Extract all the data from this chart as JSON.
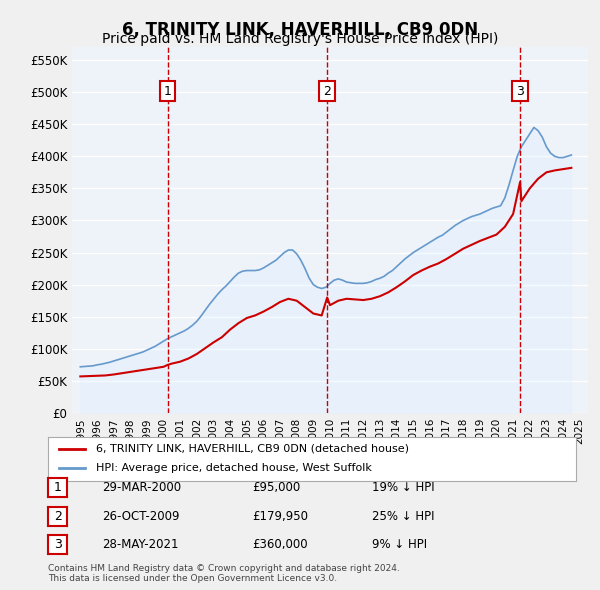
{
  "title": "6, TRINITY LINK, HAVERHILL, CB9 0DN",
  "subtitle": "Price paid vs. HM Land Registry's House Price Index (HPI)",
  "title_fontsize": 12,
  "subtitle_fontsize": 10,
  "ylim": [
    0,
    570000
  ],
  "yticks": [
    0,
    50000,
    100000,
    150000,
    200000,
    250000,
    300000,
    350000,
    400000,
    450000,
    500000,
    550000
  ],
  "ytick_labels": [
    "£0",
    "£50K",
    "£100K",
    "£150K",
    "£200K",
    "£250K",
    "£300K",
    "£350K",
    "£400K",
    "£450K",
    "£500K",
    "£550K"
  ],
  "xlim_start": 1994.5,
  "xlim_end": 2025.5,
  "background_color": "#EEF3FA",
  "plot_bg_color": "#EEF3FA",
  "grid_color": "#FFFFFF",
  "red_line_color": "#CC0000",
  "blue_line_color": "#6699CC",
  "blue_fill_color": "#DDEEFF",
  "marker_color": "#CC0000",
  "legend_label_red": "6, TRINITY LINK, HAVERHILL, CB9 0DN (detached house)",
  "legend_label_blue": "HPI: Average price, detached house, West Suffolk",
  "footnote": "Contains HM Land Registry data © Crown copyright and database right 2024.\nThis data is licensed under the Open Government Licence v3.0.",
  "transactions": [
    {
      "num": 1,
      "date": "29-MAR-2000",
      "price": 95000,
      "pct": "19% ↓ HPI",
      "x": 2000.25
    },
    {
      "num": 2,
      "date": "26-OCT-2009",
      "price": 179950,
      "pct": "25% ↓ HPI",
      "x": 2009.83
    },
    {
      "num": 3,
      "date": "28-MAY-2021",
      "price": 360000,
      "pct": "9% ↓ HPI",
      "x": 2021.42
    }
  ],
  "hpi_x": [
    1995,
    1995.25,
    1995.5,
    1995.75,
    1996,
    1996.25,
    1996.5,
    1996.75,
    1997,
    1997.25,
    1997.5,
    1997.75,
    1998,
    1998.25,
    1998.5,
    1998.75,
    1999,
    1999.25,
    1999.5,
    1999.75,
    2000,
    2000.25,
    2000.5,
    2000.75,
    2001,
    2001.25,
    2001.5,
    2001.75,
    2002,
    2002.25,
    2002.5,
    2002.75,
    2003,
    2003.25,
    2003.5,
    2003.75,
    2004,
    2004.25,
    2004.5,
    2004.75,
    2005,
    2005.25,
    2005.5,
    2005.75,
    2006,
    2006.25,
    2006.5,
    2006.75,
    2007,
    2007.25,
    2007.5,
    2007.75,
    2008,
    2008.25,
    2008.5,
    2008.75,
    2009,
    2009.25,
    2009.5,
    2009.75,
    2010,
    2010.25,
    2010.5,
    2010.75,
    2011,
    2011.25,
    2011.5,
    2011.75,
    2012,
    2012.25,
    2012.5,
    2012.75,
    2013,
    2013.25,
    2013.5,
    2013.75,
    2014,
    2014.25,
    2014.5,
    2014.75,
    2015,
    2015.25,
    2015.5,
    2015.75,
    2016,
    2016.25,
    2016.5,
    2016.75,
    2017,
    2017.25,
    2017.5,
    2017.75,
    2018,
    2018.25,
    2018.5,
    2018.75,
    2019,
    2019.25,
    2019.5,
    2019.75,
    2020,
    2020.25,
    2020.5,
    2020.75,
    2021,
    2021.25,
    2021.5,
    2021.75,
    2022,
    2022.25,
    2022.5,
    2022.75,
    2023,
    2023.25,
    2023.5,
    2023.75,
    2024,
    2024.25,
    2024.5
  ],
  "hpi_y": [
    72000,
    72500,
    73000,
    73500,
    75000,
    76000,
    77500,
    79000,
    81000,
    83000,
    85000,
    87000,
    89000,
    91000,
    93000,
    95000,
    98000,
    101000,
    104000,
    108000,
    112000,
    116000,
    119000,
    122000,
    125000,
    128000,
    132000,
    137000,
    143000,
    151000,
    160000,
    169000,
    177000,
    185000,
    192000,
    198000,
    205000,
    212000,
    218000,
    221000,
    222000,
    222000,
    222000,
    223000,
    226000,
    230000,
    234000,
    238000,
    244000,
    250000,
    254000,
    254000,
    248000,
    238000,
    225000,
    210000,
    200000,
    196000,
    194000,
    196000,
    202000,
    207000,
    209000,
    207000,
    204000,
    203000,
    202000,
    202000,
    202000,
    203000,
    205000,
    208000,
    210000,
    213000,
    218000,
    222000,
    228000,
    234000,
    240000,
    245000,
    250000,
    254000,
    258000,
    262000,
    266000,
    270000,
    274000,
    277000,
    282000,
    287000,
    292000,
    296000,
    300000,
    303000,
    306000,
    308000,
    310000,
    313000,
    316000,
    319000,
    321000,
    323000,
    335000,
    355000,
    378000,
    400000,
    415000,
    425000,
    435000,
    445000,
    440000,
    430000,
    415000,
    405000,
    400000,
    398000,
    398000,
    400000,
    402000
  ],
  "red_x": [
    1995,
    1995.5,
    1996,
    1996.5,
    1997,
    1997.5,
    1998,
    1998.5,
    1999,
    1999.5,
    2000,
    2000.25,
    2000.5,
    2001,
    2001.5,
    2002,
    2002.5,
    2003,
    2003.5,
    2004,
    2004.5,
    2005,
    2005.5,
    2006,
    2006.5,
    2007,
    2007.5,
    2008,
    2008.5,
    2009,
    2009.5,
    2009.83,
    2010,
    2010.5,
    2011,
    2011.5,
    2012,
    2012.5,
    2013,
    2013.5,
    2014,
    2014.5,
    2015,
    2015.5,
    2016,
    2016.5,
    2017,
    2017.5,
    2018,
    2018.5,
    2019,
    2019.5,
    2020,
    2020.5,
    2021,
    2021.42,
    2021.5,
    2022,
    2022.5,
    2023,
    2023.5,
    2024,
    2024.5
  ],
  "red_y": [
    57000,
    57500,
    58000,
    58500,
    60000,
    62000,
    64000,
    66000,
    68000,
    70000,
    72000,
    75000,
    77000,
    80000,
    85000,
    92000,
    101000,
    110000,
    118000,
    130000,
    140000,
    148000,
    152000,
    158000,
    165000,
    173000,
    178000,
    175000,
    165000,
    155000,
    152000,
    179950,
    168000,
    175000,
    178000,
    177000,
    176000,
    178000,
    182000,
    188000,
    196000,
    205000,
    215000,
    222000,
    228000,
    233000,
    240000,
    248000,
    256000,
    262000,
    268000,
    273000,
    278000,
    290000,
    310000,
    360000,
    330000,
    350000,
    365000,
    375000,
    378000,
    380000,
    382000
  ]
}
